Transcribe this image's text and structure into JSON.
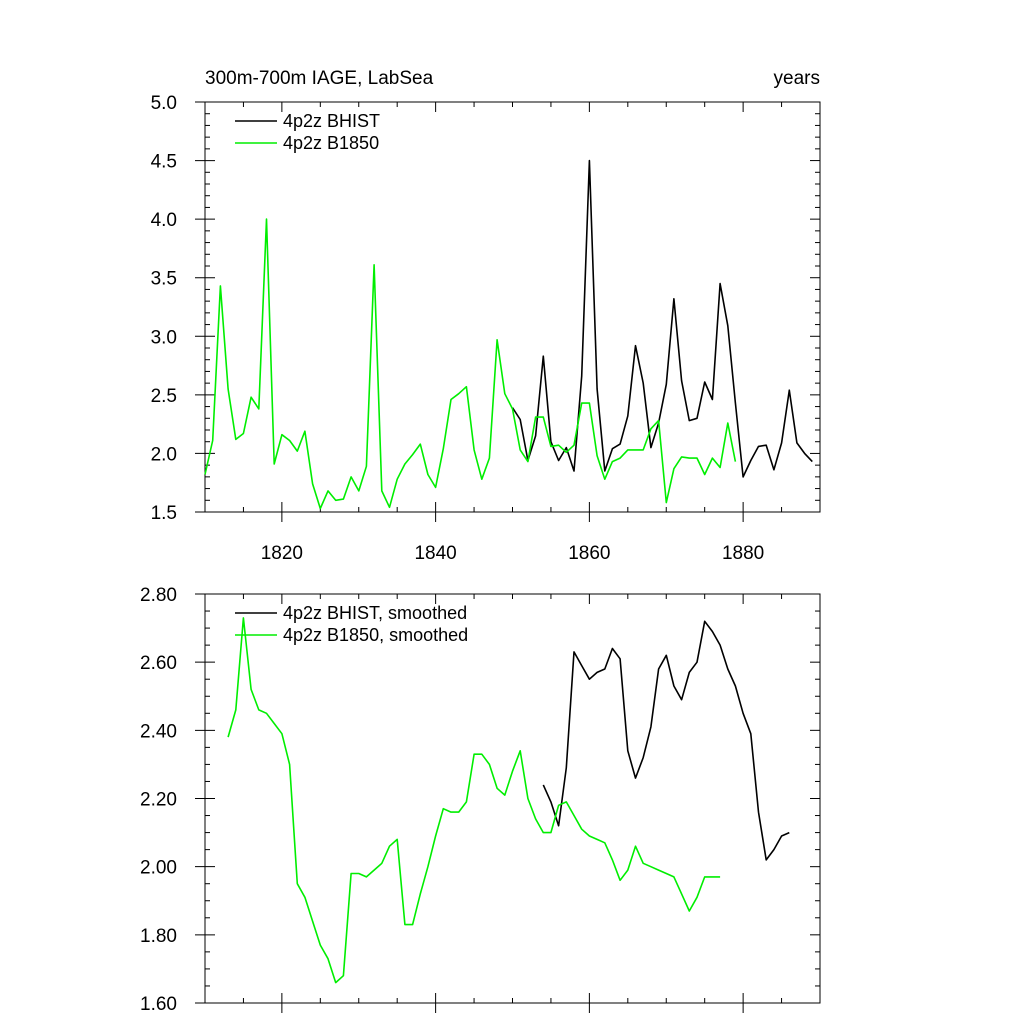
{
  "chart_data": [
    {
      "type": "line",
      "title": "300m-700m IAGE, LabSea",
      "units": "years",
      "xlabel": "",
      "ylabel": "",
      "xlim": [
        1810,
        1890
      ],
      "ylim": [
        1.5,
        5.0
      ],
      "xticks": [
        1820,
        1840,
        1860,
        1880
      ],
      "yticks": [
        1.5,
        2.0,
        2.5,
        3.0,
        3.5,
        4.0,
        4.5,
        5.0
      ],
      "ytick_decimals": 1,
      "show_x_labels": true,
      "grid": false,
      "legend": "top-left",
      "series": [
        {
          "name": "4p2z BHIST",
          "color": "#000000",
          "x": [
            1850,
            1851,
            1852,
            1853,
            1854,
            1855,
            1856,
            1857,
            1858,
            1859,
            1860,
            1861,
            1862,
            1863,
            1864,
            1865,
            1866,
            1867,
            1868,
            1869,
            1870,
            1871,
            1872,
            1873,
            1874,
            1875,
            1876,
            1877,
            1878,
            1879,
            1880,
            1881,
            1882,
            1883,
            1884,
            1885,
            1886,
            1887,
            1888,
            1889
          ],
          "values": [
            2.39,
            2.29,
            1.94,
            2.15,
            2.83,
            2.1,
            1.94,
            2.05,
            1.85,
            2.66,
            4.5,
            2.55,
            1.85,
            2.04,
            2.08,
            2.32,
            2.92,
            2.6,
            2.05,
            2.26,
            2.59,
            3.32,
            2.62,
            2.28,
            2.3,
            2.61,
            2.46,
            3.45,
            3.09,
            2.43,
            1.8,
            1.94,
            2.06,
            2.07,
            1.86,
            2.09,
            2.54,
            2.09,
            2.0,
            1.93
          ]
        },
        {
          "name": "4p2z B1850",
          "color": "#00ee00",
          "x": [
            1810,
            1811,
            1812,
            1813,
            1814,
            1815,
            1816,
            1817,
            1818,
            1819,
            1820,
            1821,
            1822,
            1823,
            1824,
            1825,
            1826,
            1827,
            1828,
            1829,
            1830,
            1831,
            1832,
            1833,
            1834,
            1835,
            1836,
            1837,
            1838,
            1839,
            1840,
            1841,
            1842,
            1843,
            1844,
            1845,
            1846,
            1847,
            1848,
            1849,
            1850,
            1851,
            1852,
            1853,
            1854,
            1855,
            1856,
            1857,
            1858,
            1859,
            1860,
            1861,
            1862,
            1863,
            1864,
            1865,
            1866,
            1867,
            1868,
            1869,
            1870,
            1871,
            1872,
            1873,
            1874,
            1875,
            1876,
            1877,
            1878,
            1879
          ],
          "values": [
            1.82,
            2.11,
            3.43,
            2.55,
            2.12,
            2.17,
            2.48,
            2.38,
            4.0,
            1.91,
            2.16,
            2.11,
            2.02,
            2.19,
            1.74,
            1.53,
            1.68,
            1.6,
            1.61,
            1.8,
            1.68,
            1.89,
            3.61,
            1.68,
            1.54,
            1.78,
            1.91,
            1.99,
            2.08,
            1.82,
            1.71,
            2.04,
            2.46,
            2.51,
            2.57,
            2.03,
            1.78,
            1.96,
            2.97,
            2.51,
            2.38,
            2.03,
            1.93,
            2.31,
            2.31,
            2.06,
            2.07,
            2.01,
            2.07,
            2.43,
            2.43,
            1.98,
            1.78,
            1.93,
            1.96,
            2.03,
            2.03,
            2.03,
            2.21,
            2.28,
            1.58,
            1.87,
            1.97,
            1.96,
            1.96,
            1.82,
            1.96,
            1.88,
            2.26,
            1.93
          ]
        }
      ]
    },
    {
      "type": "line",
      "title": "",
      "xlabel": "",
      "ylabel": "",
      "xlim": [
        1810,
        1890
      ],
      "ylim": [
        1.6,
        2.8
      ],
      "xticks": [
        1820,
        1840,
        1860,
        1880
      ],
      "yticks": [
        1.6,
        1.8,
        2.0,
        2.2,
        2.4,
        2.6,
        2.8
      ],
      "ytick_decimals": 2,
      "show_x_labels": false,
      "grid": false,
      "legend": "top-left",
      "series": [
        {
          "name": "4p2z BHIST, smoothed",
          "color": "#000000",
          "x": [
            1854,
            1855,
            1856,
            1857,
            1858,
            1859,
            1860,
            1861,
            1862,
            1863,
            1864,
            1865,
            1866,
            1867,
            1868,
            1869,
            1870,
            1871,
            1872,
            1873,
            1874,
            1875,
            1876,
            1877,
            1878,
            1879,
            1880,
            1881,
            1882,
            1883,
            1884,
            1885,
            1886
          ],
          "values": [
            2.24,
            2.19,
            2.12,
            2.29,
            2.63,
            2.59,
            2.55,
            2.57,
            2.58,
            2.64,
            2.61,
            2.34,
            2.26,
            2.32,
            2.41,
            2.58,
            2.62,
            2.53,
            2.49,
            2.57,
            2.6,
            2.72,
            2.69,
            2.65,
            2.58,
            2.53,
            2.45,
            2.39,
            2.16,
            2.02,
            2.05,
            2.09,
            2.1
          ]
        },
        {
          "name": "4p2z B1850, smoothed",
          "color": "#00ee00",
          "x": [
            1813,
            1814,
            1815,
            1816,
            1817,
            1818,
            1819,
            1820,
            1821,
            1822,
            1823,
            1824,
            1825,
            1826,
            1827,
            1828,
            1829,
            1830,
            1831,
            1832,
            1833,
            1834,
            1835,
            1836,
            1837,
            1838,
            1839,
            1840,
            1841,
            1842,
            1843,
            1844,
            1845,
            1846,
            1847,
            1848,
            1849,
            1850,
            1851,
            1852,
            1853,
            1854,
            1855,
            1856,
            1857,
            1858,
            1859,
            1860,
            1861,
            1862,
            1863,
            1864,
            1865,
            1866,
            1867,
            1868,
            1869,
            1870,
            1871,
            1872,
            1873,
            1874,
            1875,
            1876,
            1877
          ],
          "values": [
            2.38,
            2.46,
            2.73,
            2.52,
            2.46,
            2.45,
            2.42,
            2.39,
            2.3,
            1.95,
            1.91,
            1.84,
            1.77,
            1.73,
            1.66,
            1.68,
            1.98,
            1.98,
            1.97,
            1.99,
            2.01,
            2.06,
            2.08,
            1.83,
            1.83,
            1.92,
            2.0,
            2.09,
            2.17,
            2.16,
            2.16,
            2.19,
            2.33,
            2.33,
            2.3,
            2.23,
            2.21,
            2.28,
            2.34,
            2.2,
            2.14,
            2.1,
            2.1,
            2.18,
            2.19,
            2.15,
            2.11,
            2.09,
            2.08,
            2.07,
            2.02,
            1.96,
            1.99,
            2.06,
            2.01,
            2.0,
            1.99,
            1.98,
            1.97,
            1.92,
            1.87,
            1.91,
            1.97,
            1.97,
            1.97
          ]
        }
      ]
    }
  ]
}
